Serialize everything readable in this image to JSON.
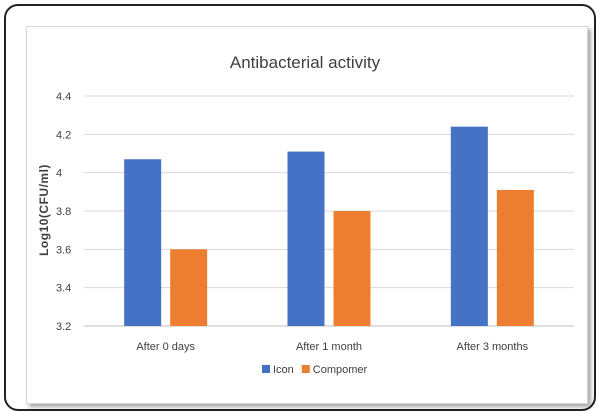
{
  "chart_data": {
    "type": "bar",
    "title": "Antibacterial activity",
    "xlabel": "",
    "ylabel": "Log10(CFU/ml)",
    "categories": [
      "After 0 days",
      "After 1 month",
      "After 3 months"
    ],
    "series": [
      {
        "name": "Icon",
        "values": [
          4.07,
          4.11,
          4.24
        ],
        "color": "#4472C4"
      },
      {
        "name": "Compomer",
        "values": [
          3.6,
          3.8,
          3.91
        ],
        "color": "#ED7D31"
      }
    ],
    "ylim": [
      3.2,
      4.4
    ],
    "yticks": [
      "3.2",
      "3.4",
      "3.6",
      "3.8",
      "4",
      "4.2",
      "4.4"
    ],
    "grid": true,
    "legend": "bottom"
  }
}
